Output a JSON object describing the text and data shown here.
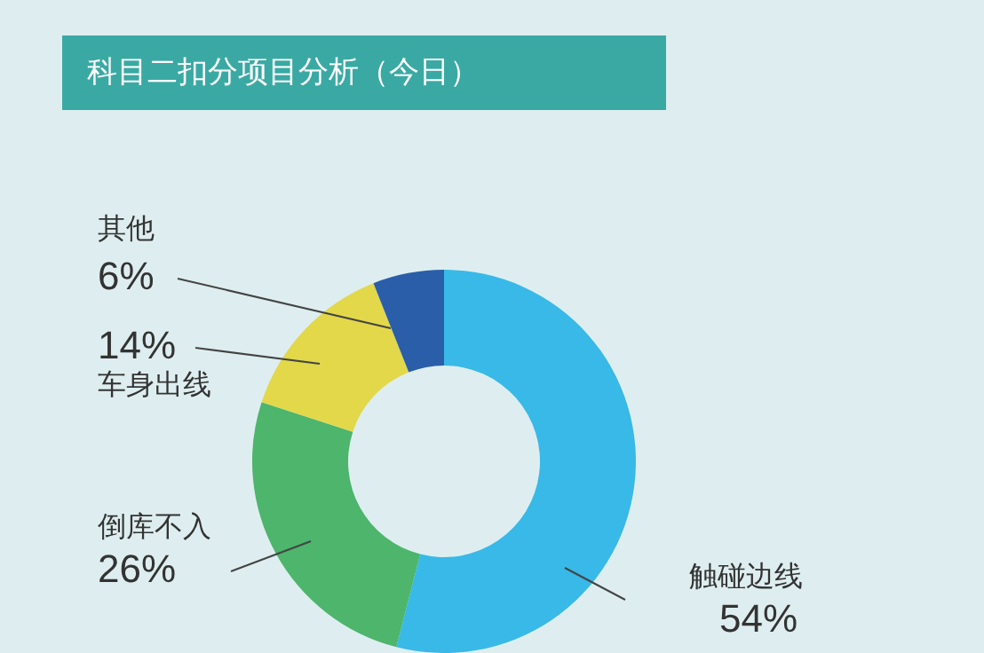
{
  "chart_data": {
    "type": "donut",
    "title": "科目二扣分项目分析（今日）",
    "categories": [
      "触碰边线",
      "倒库不入",
      "车身出线",
      "其他"
    ],
    "values": [
      54,
      26,
      14,
      6
    ],
    "value_labels": [
      "54%",
      "26%",
      "14%",
      "6%"
    ],
    "colors": [
      "#38b9e8",
      "#4db56c",
      "#e2d84a",
      "#2b5ea9"
    ],
    "legend": false
  }
}
